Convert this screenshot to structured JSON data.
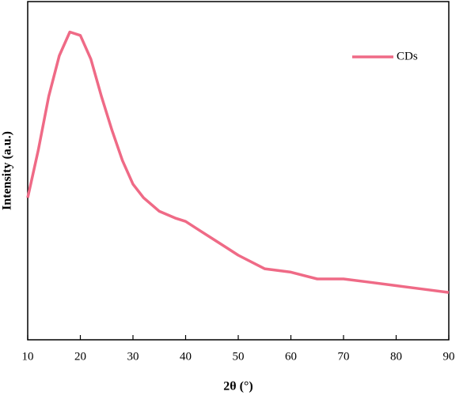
{
  "chart_data": {
    "type": "line",
    "x_label": "2θ (°)",
    "y_label": "Intensity (a.u.)",
    "xlim": [
      10,
      90
    ],
    "xticks": [
      10,
      20,
      30,
      40,
      50,
      60,
      70,
      80,
      90
    ],
    "ylim": [
      0,
      100
    ],
    "legend": "upper right",
    "series": [
      {
        "name": "CDs",
        "color": "#ef6a86",
        "x": [
          10,
          12,
          14,
          16,
          18,
          20,
          22,
          24,
          26,
          28,
          30,
          32,
          35,
          38,
          40,
          42,
          45,
          48,
          50,
          55,
          60,
          65,
          70,
          75,
          80,
          85,
          90
        ],
        "values": [
          42,
          56,
          72,
          84,
          91,
          90,
          83,
          72,
          62,
          53,
          46,
          42,
          38,
          36,
          35,
          33,
          30,
          27,
          25,
          21,
          20,
          18,
          18,
          17,
          16,
          15,
          14
        ]
      }
    ]
  }
}
